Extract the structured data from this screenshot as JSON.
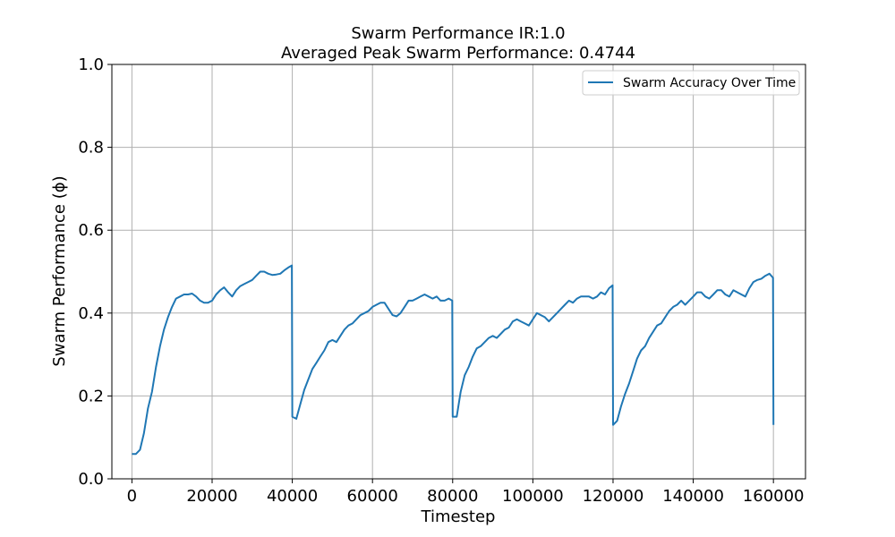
{
  "chart_data": {
    "type": "line",
    "title": "Swarm Performance IR:1.0",
    "subtitle": "Averaged Peak Swarm Performance: 0.4744",
    "xlabel": "Timestep",
    "ylabel": "Swarm Performance (ϕ)",
    "xlim": [
      -5000,
      168000
    ],
    "ylim": [
      0.0,
      1.0
    ],
    "xticks": [
      0,
      20000,
      40000,
      60000,
      80000,
      100000,
      120000,
      140000,
      160000
    ],
    "yticks": [
      0.0,
      0.2,
      0.4,
      0.6,
      0.8,
      1.0
    ],
    "xtick_labels": [
      "0",
      "20000",
      "40000",
      "60000",
      "80000",
      "100000",
      "120000",
      "140000",
      "160000"
    ],
    "ytick_labels": [
      "0.0",
      "0.2",
      "0.4",
      "0.6",
      "0.8",
      "1.0"
    ],
    "grid": true,
    "legend_position": "top-right",
    "series": [
      {
        "name": "Swarm Accuracy Over Time",
        "color": "#1f77b4",
        "points": [
          [
            0,
            0.06
          ],
          [
            1000,
            0.06
          ],
          [
            2000,
            0.07
          ],
          [
            3000,
            0.11
          ],
          [
            4000,
            0.17
          ],
          [
            5000,
            0.21
          ],
          [
            6000,
            0.27
          ],
          [
            7000,
            0.32
          ],
          [
            8000,
            0.36
          ],
          [
            9000,
            0.39
          ],
          [
            10000,
            0.415
          ],
          [
            11000,
            0.435
          ],
          [
            12000,
            0.44
          ],
          [
            13000,
            0.445
          ],
          [
            14000,
            0.445
          ],
          [
            15000,
            0.447
          ],
          [
            16000,
            0.44
          ],
          [
            17000,
            0.43
          ],
          [
            18000,
            0.425
          ],
          [
            19000,
            0.425
          ],
          [
            20000,
            0.43
          ],
          [
            21000,
            0.445
          ],
          [
            22000,
            0.455
          ],
          [
            23000,
            0.462
          ],
          [
            24000,
            0.45
          ],
          [
            25000,
            0.44
          ],
          [
            26000,
            0.455
          ],
          [
            27000,
            0.465
          ],
          [
            28000,
            0.47
          ],
          [
            29000,
            0.475
          ],
          [
            30000,
            0.48
          ],
          [
            31000,
            0.49
          ],
          [
            32000,
            0.5
          ],
          [
            33000,
            0.5
          ],
          [
            34000,
            0.495
          ],
          [
            35000,
            0.492
          ],
          [
            36000,
            0.493
          ],
          [
            37000,
            0.495
          ],
          [
            38000,
            0.503
          ],
          [
            39000,
            0.51
          ],
          [
            39900,
            0.515
          ],
          [
            40000,
            0.15
          ],
          [
            41000,
            0.145
          ],
          [
            42000,
            0.18
          ],
          [
            43000,
            0.215
          ],
          [
            44000,
            0.24
          ],
          [
            45000,
            0.265
          ],
          [
            46000,
            0.28
          ],
          [
            47000,
            0.295
          ],
          [
            48000,
            0.31
          ],
          [
            49000,
            0.33
          ],
          [
            50000,
            0.335
          ],
          [
            51000,
            0.33
          ],
          [
            52000,
            0.345
          ],
          [
            53000,
            0.36
          ],
          [
            54000,
            0.37
          ],
          [
            55000,
            0.375
          ],
          [
            56000,
            0.385
          ],
          [
            57000,
            0.395
          ],
          [
            58000,
            0.4
          ],
          [
            59000,
            0.405
          ],
          [
            60000,
            0.415
          ],
          [
            61000,
            0.42
          ],
          [
            62000,
            0.425
          ],
          [
            63000,
            0.425
          ],
          [
            64000,
            0.41
          ],
          [
            65000,
            0.395
          ],
          [
            66000,
            0.392
          ],
          [
            67000,
            0.4
          ],
          [
            68000,
            0.415
          ],
          [
            69000,
            0.43
          ],
          [
            70000,
            0.43
          ],
          [
            71000,
            0.435
          ],
          [
            72000,
            0.44
          ],
          [
            73000,
            0.445
          ],
          [
            74000,
            0.44
          ],
          [
            75000,
            0.435
          ],
          [
            76000,
            0.44
          ],
          [
            77000,
            0.43
          ],
          [
            78000,
            0.43
          ],
          [
            79000,
            0.435
          ],
          [
            79900,
            0.43
          ],
          [
            80000,
            0.15
          ],
          [
            81000,
            0.15
          ],
          [
            82000,
            0.21
          ],
          [
            83000,
            0.25
          ],
          [
            84000,
            0.27
          ],
          [
            85000,
            0.295
          ],
          [
            86000,
            0.315
          ],
          [
            87000,
            0.32
          ],
          [
            88000,
            0.33
          ],
          [
            89000,
            0.34
          ],
          [
            90000,
            0.345
          ],
          [
            91000,
            0.34
          ],
          [
            92000,
            0.35
          ],
          [
            93000,
            0.36
          ],
          [
            94000,
            0.365
          ],
          [
            95000,
            0.38
          ],
          [
            96000,
            0.385
          ],
          [
            97000,
            0.38
          ],
          [
            98000,
            0.375
          ],
          [
            99000,
            0.37
          ],
          [
            100000,
            0.385
          ],
          [
            101000,
            0.4
          ],
          [
            102000,
            0.395
          ],
          [
            103000,
            0.39
          ],
          [
            104000,
            0.38
          ],
          [
            105000,
            0.39
          ],
          [
            106000,
            0.4
          ],
          [
            107000,
            0.41
          ],
          [
            108000,
            0.42
          ],
          [
            109000,
            0.43
          ],
          [
            110000,
            0.425
          ],
          [
            111000,
            0.435
          ],
          [
            112000,
            0.44
          ],
          [
            113000,
            0.44
          ],
          [
            114000,
            0.44
          ],
          [
            115000,
            0.435
          ],
          [
            116000,
            0.44
          ],
          [
            117000,
            0.45
          ],
          [
            118000,
            0.445
          ],
          [
            119000,
            0.46
          ],
          [
            119900,
            0.467
          ],
          [
            120000,
            0.13
          ],
          [
            121000,
            0.14
          ],
          [
            122000,
            0.175
          ],
          [
            123000,
            0.205
          ],
          [
            124000,
            0.23
          ],
          [
            125000,
            0.26
          ],
          [
            126000,
            0.29
          ],
          [
            127000,
            0.31
          ],
          [
            128000,
            0.32
          ],
          [
            129000,
            0.34
          ],
          [
            130000,
            0.355
          ],
          [
            131000,
            0.37
          ],
          [
            132000,
            0.375
          ],
          [
            133000,
            0.39
          ],
          [
            134000,
            0.405
          ],
          [
            135000,
            0.415
          ],
          [
            136000,
            0.42
          ],
          [
            137000,
            0.43
          ],
          [
            138000,
            0.42
          ],
          [
            139000,
            0.43
          ],
          [
            140000,
            0.44
          ],
          [
            141000,
            0.45
          ],
          [
            142000,
            0.45
          ],
          [
            143000,
            0.44
          ],
          [
            144000,
            0.435
          ],
          [
            145000,
            0.445
          ],
          [
            146000,
            0.455
          ],
          [
            147000,
            0.455
          ],
          [
            148000,
            0.445
          ],
          [
            149000,
            0.44
          ],
          [
            150000,
            0.455
          ],
          [
            151000,
            0.45
          ],
          [
            152000,
            0.445
          ],
          [
            153000,
            0.44
          ],
          [
            154000,
            0.46
          ],
          [
            155000,
            0.475
          ],
          [
            156000,
            0.48
          ],
          [
            157000,
            0.483
          ],
          [
            158000,
            0.49
          ],
          [
            159000,
            0.495
          ],
          [
            159900,
            0.485
          ],
          [
            160000,
            0.13
          ]
        ]
      }
    ]
  }
}
